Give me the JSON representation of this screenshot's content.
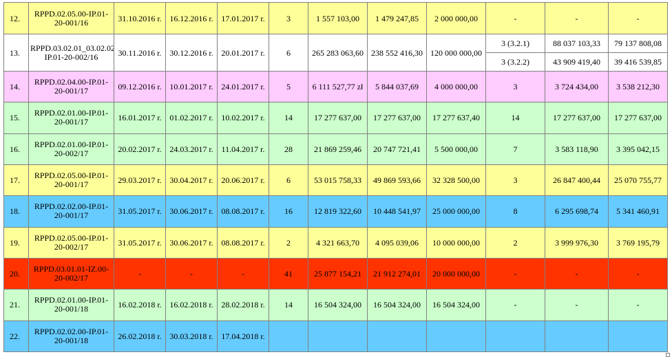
{
  "rows": [
    {
      "n": "12.",
      "code": "RPPD.02.05.00-IP.01-20-001/16",
      "d1": "31.10.2016 r.",
      "d2": "16.12.2016 r.",
      "d3": "17.01.2017 r.",
      "c": "3",
      "a1": "1 557 103,00",
      "a2": "1 479 247,85",
      "a3": "2 000 000,00",
      "s": "-",
      "b1": "-",
      "b2": "-"
    },
    {
      "n": "13.",
      "code": "RPPD.03.02.01_03.02.02-IP.01-20-002/16",
      "d1": "30.11.2016 r.",
      "d2": "30.12.2016 r.",
      "d3": "20.01.2017 r.",
      "c": "6",
      "a1": "265 283 063,60",
      "a2": "238 552 416,30",
      "a3": "120 000 000,00",
      "sub": [
        {
          "s": "3 (3.2.1)",
          "b1": "88 037 103,33",
          "b2": "79 137 808,08"
        },
        {
          "s": "3 (3.2.2)",
          "b1": "43 909 419,40",
          "b2": "39 416 539,85"
        }
      ]
    },
    {
      "n": "14.",
      "code": "RPPD.02.04.00-IP.01-20-001/17",
      "d1": "09.12.2016 r.",
      "d2": "10.01.2017 r.",
      "d3": "24.01.2017 r.",
      "c": "5",
      "a1": "6 111 527,77 zł",
      "a2": "5 844 037,69",
      "a3": "4 000 000,00",
      "s": "3",
      "b1": "3 724 434,00",
      "b2": "3 538 212,30"
    },
    {
      "n": "15.",
      "code": "RPPD.02.01.00-IP.01-20-001/17",
      "d1": "16.01.2017 r.",
      "d2": "01.02.2017 r.",
      "d3": "10.02.2017 r.",
      "c": "14",
      "a1": "17 277 637,00",
      "a2": "17 277 637,00",
      "a3": "17 277 637,40",
      "s": "14",
      "b1": "17 277 637,00",
      "b2": "17 277 637,00"
    },
    {
      "n": "16.",
      "code": "RPPD.02.01.00-IP.01-20-002/17",
      "d1": "20.02.2017 r.",
      "d2": "24.03.2017 r.",
      "d3": "11.04.2017 r.",
      "c": "28",
      "a1": "21 869 259,46",
      "a2": "20 747 721,41",
      "a3": "5 500 000,00",
      "s": "7",
      "b1": "3 583 118,90",
      "b2": "3 395 042,15"
    },
    {
      "n": "17.",
      "code": "RPPD.02.05.00-IP.01-20-001/17",
      "d1": "29.03.2017 r.",
      "d2": "30.04.2017 r.",
      "d3": "20.06.2017 r.",
      "c": "6",
      "a1": "53 015 758,33",
      "a2": "49 869 593,66",
      "a3": "32 328 500,00",
      "s": "3",
      "b1": "26 847 400,44",
      "b2": "25 070 755,77"
    },
    {
      "n": "18.",
      "code": "RPPD.02.02.00-IP.01-20-001/17",
      "d1": "31.05.2017 r.",
      "d2": "30.06.2017 r.",
      "d3": "08.08.2017 r.",
      "c": "16",
      "a1": "12 819 322,60",
      "a2": "10 448 541,97",
      "a3": "25 000 000,00",
      "s": "8",
      "b1": "6 295 698,74",
      "b2": "5 341 460,91"
    },
    {
      "n": "19.",
      "code": "RPPD.02.05.00-IP.01-20-002/17",
      "d1": "31.05.2017 r.",
      "d2": "30.06.2017 r.",
      "d3": "08.08.2017 r.",
      "c": "2",
      "a1": "4 321 663,70",
      "a2": "4 095 039,06",
      "a3": "10 000 000,00",
      "s": "2",
      "b1": "3 999 976,30",
      "b2": "3 769 195,79"
    },
    {
      "n": "20.",
      "code": "RPPD.03.01.01-IZ.00-20-002/17",
      "d1": "-",
      "d2": "-",
      "d3": "-",
      "c": "41",
      "a1": "25 877 154,21",
      "a2": "21 912 274,01",
      "a3": "20 000 000,00",
      "s": "-",
      "b1": "-",
      "b2": "-"
    },
    {
      "n": "21.",
      "code": "RPPD.02.01.00-IP.01-20-001/18",
      "d1": "16.02.2018 r.",
      "d2": "16.02.2018 r.",
      "d3": "28.02.2018 r.",
      "c": "14",
      "a1": "16 504 324,00",
      "a2": "16 504 324,00",
      "a3": "16 504 324,00",
      "s": "-",
      "b1": "-",
      "b2": "-"
    },
    {
      "n": "22.",
      "code": "RPPD.02.02.00-IP.01-20-001/18",
      "d1": "26.02.2018 r.",
      "d2": "30.03.2018 r.",
      "d3": "17.04.2018 r.",
      "c": "",
      "a1": "",
      "a2": "",
      "a3": "",
      "s": "",
      "b1": "",
      "b2": ""
    }
  ]
}
